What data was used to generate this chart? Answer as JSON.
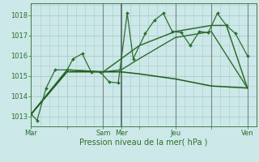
{
  "background_color": "#cce8e8",
  "grid_color": "#aacccc",
  "xlabel": "Pression niveau de la mer( hPa )",
  "ylim": [
    1012.5,
    1018.6
  ],
  "yticks": [
    1013,
    1014,
    1015,
    1016,
    1017,
    1018
  ],
  "xtick_labels": [
    "Mar",
    "",
    "Sam",
    "Mer",
    "",
    "Jeu",
    "",
    "Ven"
  ],
  "xtick_positions": [
    0,
    12,
    24,
    30,
    36,
    48,
    60,
    72
  ],
  "xlim": [
    0,
    75
  ],
  "series": [
    {
      "x": [
        0,
        2,
        5,
        8,
        12,
        14,
        17,
        20,
        23,
        26,
        29,
        32,
        34,
        38,
        41,
        44,
        47,
        50,
        53,
        56,
        59,
        62,
        65,
        68,
        72
      ],
      "y": [
        1013.1,
        1012.8,
        1014.4,
        1015.3,
        1015.3,
        1015.85,
        1016.1,
        1015.2,
        1015.2,
        1014.7,
        1014.65,
        1018.1,
        1015.85,
        1017.1,
        1017.75,
        1018.1,
        1017.2,
        1017.15,
        1016.5,
        1017.2,
        1017.15,
        1018.1,
        1017.5,
        1017.1,
        1016.0
      ],
      "color": "#2d6e2d",
      "linewidth": 0.9,
      "marker": "D",
      "markersize": 2.0
    },
    {
      "x": [
        0,
        12,
        24,
        30,
        36,
        48,
        60,
        65,
        72
      ],
      "y": [
        1013.1,
        1015.3,
        1015.2,
        1015.85,
        1016.5,
        1017.2,
        1017.5,
        1017.5,
        1014.4
      ],
      "color": "#2d6e2d",
      "linewidth": 1.1,
      "marker": null,
      "markersize": 0
    },
    {
      "x": [
        0,
        12,
        24,
        30,
        36,
        48,
        60,
        72
      ],
      "y": [
        1013.1,
        1015.3,
        1015.2,
        1015.3,
        1015.85,
        1016.9,
        1017.2,
        1014.4
      ],
      "color": "#2d6e2d",
      "linewidth": 1.0,
      "marker": null,
      "markersize": 0
    },
    {
      "x": [
        0,
        12,
        24,
        30,
        36,
        48,
        60,
        72
      ],
      "y": [
        1013.1,
        1015.2,
        1015.2,
        1015.2,
        1015.1,
        1014.85,
        1014.5,
        1014.4
      ],
      "color": "#1a5c1a",
      "linewidth": 1.1,
      "marker": null,
      "markersize": 0
    }
  ],
  "vlines": [
    {
      "x": 24,
      "color": "#778888",
      "linewidth": 0.8
    },
    {
      "x": 30,
      "color": "#556666",
      "linewidth": 1.2
    },
    {
      "x": 48,
      "color": "#778888",
      "linewidth": 0.8
    },
    {
      "x": 60,
      "color": "#778888",
      "linewidth": 0.8
    },
    {
      "x": 72,
      "color": "#778888",
      "linewidth": 0.8
    }
  ],
  "fontsize_tick": 6,
  "fontsize_xlabel": 7,
  "tick_color": "#2d6e2d",
  "spine_color": "#2d6e2d"
}
